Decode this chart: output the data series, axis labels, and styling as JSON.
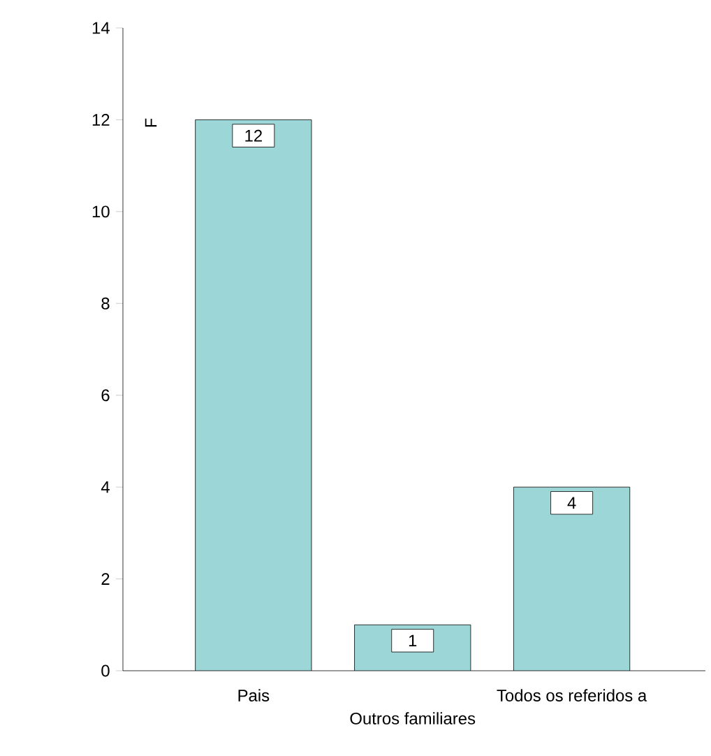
{
  "chart_data": {
    "type": "bar",
    "ylabel": "F",
    "categories": [
      "Pais",
      "Outros familiares",
      "Todos os referidos a"
    ],
    "values": [
      12,
      1,
      4
    ],
    "color": "#9dd6d6",
    "ylim": [
      0,
      14
    ],
    "yticks": [
      0,
      2,
      4,
      6,
      8,
      10,
      12,
      14
    ],
    "grid": false,
    "data_labels": true
  }
}
